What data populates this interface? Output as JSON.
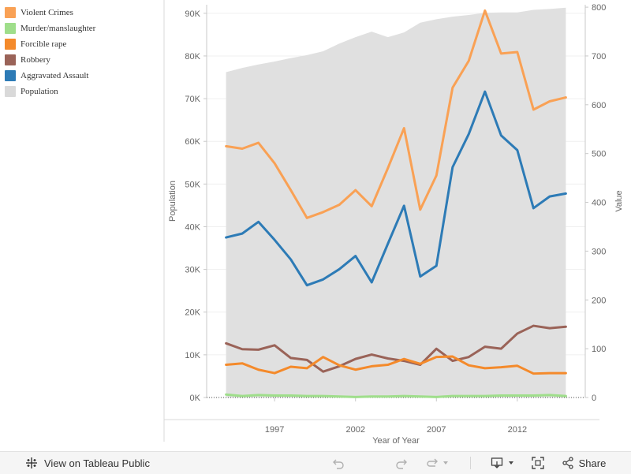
{
  "legend": {
    "items": [
      {
        "label": "Violent Crimes",
        "color": "#f9a155"
      },
      {
        "label": "Murder/manslaughter",
        "color": "#9fde8b"
      },
      {
        "label": "Forcible rape",
        "color": "#f48a2b"
      },
      {
        "label": "Robbery",
        "color": "#9a6358"
      },
      {
        "label": "Aggravated Assault",
        "color": "#2d7bb6"
      },
      {
        "label": "Population",
        "color": "#d9d9d9"
      }
    ]
  },
  "toolbar": {
    "view_label": "View on Tableau Public",
    "share_label": "Share"
  },
  "chart_data": {
    "type": "line",
    "title": "",
    "xlabel": "Year of Year",
    "ylabel_left": "Population",
    "ylabel_right": "Value",
    "x": [
      1994,
      1995,
      1996,
      1997,
      1998,
      1999,
      2000,
      2001,
      2002,
      2003,
      2004,
      2005,
      2006,
      2007,
      2008,
      2009,
      2010,
      2011,
      2012,
      2013,
      2014,
      2015
    ],
    "xticks": [
      1997,
      2002,
      2007,
      2012
    ],
    "xlim": [
      1994,
      2015
    ],
    "yleft": {
      "ticks": [
        0,
        10000,
        20000,
        30000,
        40000,
        50000,
        60000,
        70000,
        80000,
        90000
      ],
      "ticklabels": [
        "0K",
        "10K",
        "20K",
        "30K",
        "40K",
        "50K",
        "60K",
        "70K",
        "80K",
        "90K"
      ],
      "lim": [
        0,
        92000
      ]
    },
    "yright": {
      "ticks": [
        0,
        100,
        200,
        300,
        400,
        500,
        600,
        700,
        800
      ],
      "lim": [
        0,
        805
      ]
    },
    "population": {
      "name": "Population",
      "color": "#e0e0e0",
      "axis": "left",
      "values": [
        76200,
        77200,
        78000,
        78700,
        79500,
        80200,
        81100,
        82900,
        84400,
        85700,
        84400,
        85500,
        87800,
        88600,
        89200,
        89600,
        90100,
        90200,
        90200,
        90800,
        91000,
        91300
      ]
    },
    "series": [
      {
        "name": "Violent Crimes",
        "color": "#f9a155",
        "axis": "right",
        "values": [
          515,
          510,
          522,
          480,
          425,
          368,
          380,
          395,
          425,
          392,
          470,
          552,
          385,
          455,
          635,
          690,
          793,
          705,
          708,
          590,
          607,
          615
        ]
      },
      {
        "name": "Aggravated Assault",
        "color": "#2d7bb6",
        "axis": "right",
        "values": [
          328,
          336,
          360,
          323,
          283,
          230,
          242,
          263,
          290,
          236,
          315,
          393,
          248,
          270,
          472,
          540,
          627,
          537,
          507,
          388,
          412,
          418
        ]
      },
      {
        "name": "Robbery",
        "color": "#9a6358",
        "axis": "right",
        "values": [
          111,
          99,
          98,
          107,
          81,
          77,
          53,
          64,
          79,
          88,
          80,
          75,
          67,
          100,
          75,
          83,
          104,
          100,
          131,
          147,
          142,
          145
        ]
      },
      {
        "name": "Forcible rape",
        "color": "#f48a2b",
        "axis": "right",
        "values": [
          67,
          70,
          57,
          50,
          63,
          60,
          83,
          66,
          57,
          64,
          67,
          79,
          69,
          83,
          84,
          66,
          60,
          62,
          65,
          49,
          50,
          50
        ]
      },
      {
        "name": "Murder/manslaughter",
        "color": "#9fde8b",
        "axis": "right",
        "values": [
          6,
          3,
          5,
          4,
          4,
          3,
          3,
          2,
          1,
          2,
          2,
          3,
          2,
          1,
          3,
          3,
          3,
          4,
          4,
          4,
          5,
          3
        ]
      }
    ]
  }
}
